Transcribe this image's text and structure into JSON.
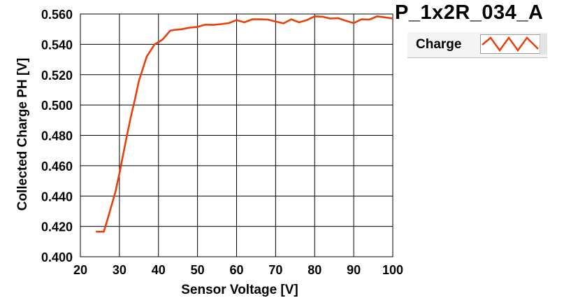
{
  "chart_data": {
    "type": "line",
    "title": "P_1x2R_034_A",
    "xlabel": "Sensor Voltage [V]",
    "ylabel": "Collected Charge PH [V]",
    "xlim": [
      20,
      100
    ],
    "ylim": [
      0.4,
      0.56
    ],
    "xticks": [
      "20",
      "30",
      "40",
      "50",
      "60",
      "70",
      "80",
      "90",
      "100"
    ],
    "yticks": [
      "0.400",
      "0.420",
      "0.440",
      "0.460",
      "0.480",
      "0.500",
      "0.520",
      "0.540",
      "0.560"
    ],
    "grid": true,
    "legend_position": "top-right",
    "series": [
      {
        "name": "Charge",
        "color": "#e8400c",
        "x": [
          24,
          25,
          26,
          27,
          28,
          29,
          30,
          31,
          32,
          33,
          34,
          35,
          36,
          37,
          38,
          39,
          40,
          41,
          42,
          43,
          44,
          46,
          48,
          50,
          52,
          54,
          56,
          58,
          60,
          62,
          64,
          66,
          68,
          70,
          72,
          74,
          76,
          78,
          80,
          82,
          84,
          86,
          88,
          90,
          92,
          94,
          96,
          98,
          100
        ],
        "y": [
          0.4165,
          0.4165,
          0.4165,
          0.425,
          0.434,
          0.443,
          0.455,
          0.468,
          0.481,
          0.493,
          0.504,
          0.516,
          0.524,
          0.532,
          0.536,
          0.54,
          0.5415,
          0.543,
          0.546,
          0.549,
          0.5495,
          0.55,
          0.551,
          0.5515,
          0.553,
          0.5528,
          0.5533,
          0.554,
          0.556,
          0.5545,
          0.5565,
          0.5565,
          0.5563,
          0.555,
          0.5538,
          0.5565,
          0.5545,
          0.556,
          0.5585,
          0.5582,
          0.557,
          0.5573,
          0.5555,
          0.554,
          0.5565,
          0.5563,
          0.5585,
          0.5578,
          0.557
        ]
      }
    ]
  },
  "legend": {
    "label": "Charge",
    "icon": "zigzag-line-icon"
  }
}
